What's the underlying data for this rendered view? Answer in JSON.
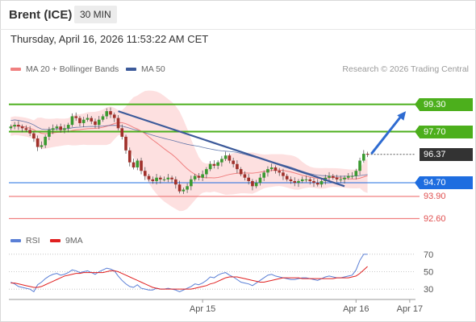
{
  "header": {
    "instrument": "Brent (ICE)",
    "interval": "30 MIN",
    "timestamp": "Thursday, April 16, 2026 11:53:22 AM CET",
    "credit": "Research © 2026 Trading Central"
  },
  "legend": [
    {
      "label": "MA 20 + Bollinger Bands",
      "color": "#f08080"
    },
    {
      "label": "MA 50",
      "color": "#3c5a9a"
    }
  ],
  "rsi_legend": [
    {
      "label": "RSI",
      "color": "#5a7fd6"
    },
    {
      "label": "9MA",
      "color": "#e02020"
    }
  ],
  "chart_data": [
    {
      "type": "candlestick",
      "title": "Brent (ICE)",
      "xlabel": "",
      "ylabel": "",
      "x_ticks": [
        "Apr 15",
        "Apr 16",
        "Apr 17"
      ],
      "ylim": [
        92.2,
        100.7
      ],
      "current_price": 96.37,
      "levels": [
        {
          "value": 99.3,
          "label": "99.30",
          "kind": "resistance",
          "color": "#4caf1c"
        },
        {
          "value": 97.7,
          "label": "97.70",
          "kind": "resistance",
          "color": "#4caf1c"
        },
        {
          "value": 96.37,
          "label": "96.37",
          "kind": "last",
          "color": "#333333"
        },
        {
          "value": 94.7,
          "label": "94.70",
          "kind": "pivot",
          "color": "#1e6de0"
        },
        {
          "value": 93.9,
          "label": "93.90",
          "kind": "support",
          "color": "#f08080"
        },
        {
          "value": 92.6,
          "label": "92.60",
          "kind": "support",
          "color": "#f08080"
        }
      ],
      "close": [
        98.0,
        98.1,
        98.0,
        97.9,
        97.8,
        97.6,
        97.3,
        96.8,
        96.9,
        97.4,
        97.8,
        97.9,
        98.0,
        97.8,
        97.9,
        98.1,
        98.6,
        98.5,
        98.2,
        98.4,
        98.5,
        98.3,
        98.1,
        98.4,
        98.6,
        98.9,
        98.7,
        98.5,
        97.9,
        97.4,
        96.6,
        95.9,
        95.6,
        96.0,
        95.4,
        95.1,
        94.9,
        94.8,
        95.0,
        94.9,
        94.9,
        95.0,
        94.9,
        94.6,
        94.2,
        94.3,
        94.5,
        94.9,
        95.1,
        95.0,
        95.2,
        95.5,
        95.8,
        95.7,
        95.9,
        96.1,
        96.3,
        96.0,
        95.8,
        95.5,
        95.2,
        95.0,
        94.8,
        94.5,
        94.7,
        95.0,
        95.3,
        95.5,
        95.6,
        95.4,
        95.3,
        95.1,
        94.9,
        94.8,
        94.7,
        94.8,
        94.9,
        94.9,
        94.8,
        94.7,
        94.6,
        94.8,
        95.0,
        95.1,
        95.0,
        94.9,
        94.9,
        95.0,
        95.1,
        95.1,
        95.4,
        96.0,
        96.4,
        96.37
      ],
      "trend_lines": [
        {
          "from": {
            "bar": 28,
            "price": 98.9
          },
          "to": {
            "bar": 87,
            "price": 94.5
          },
          "color": "#3c5a9a"
        }
      ],
      "forecast_arrow": {
        "from": {
          "bar": 94,
          "price": 96.4
        },
        "to": {
          "bar": 103,
          "price": 98.9
        },
        "color": "#2e6bd1"
      }
    },
    {
      "type": "line",
      "title": "RSI",
      "ylim": [
        20,
        80
      ],
      "y_ticks": [
        30,
        50,
        70
      ],
      "series": [
        {
          "name": "RSI",
          "color": "#5a7fd6",
          "values": [
            38,
            36,
            33,
            32,
            31,
            30,
            27,
            35,
            38,
            42,
            45,
            47,
            48,
            46,
            47,
            49,
            52,
            51,
            49,
            50,
            51,
            49,
            47,
            50,
            52,
            54,
            53,
            51,
            45,
            40,
            36,
            33,
            32,
            35,
            31,
            30,
            29,
            29,
            31,
            30,
            30,
            31,
            30,
            29,
            27,
            29,
            31,
            33,
            36,
            35,
            37,
            40,
            44,
            43,
            46,
            48,
            49,
            46,
            44,
            41,
            38,
            37,
            36,
            34,
            37,
            40,
            43,
            46,
            47,
            45,
            44,
            43,
            42,
            41,
            41,
            42,
            43,
            43,
            42,
            41,
            40,
            42,
            44,
            45,
            44,
            43,
            43,
            44,
            45,
            46,
            52,
            63,
            70,
            70
          ]
        },
        {
          "name": "9MA",
          "color": "#e02020",
          "values": [
            37,
            37,
            36,
            35,
            34,
            33,
            32,
            32,
            33,
            35,
            37,
            39,
            41,
            43,
            45,
            46,
            47,
            48,
            48,
            49,
            49,
            49,
            49,
            49,
            49,
            50,
            51,
            51,
            50,
            48,
            46,
            44,
            42,
            40,
            38,
            36,
            34,
            32,
            31,
            30,
            30,
            30,
            30,
            30,
            30,
            30,
            30,
            30,
            31,
            32,
            33,
            34,
            36,
            37,
            39,
            41,
            43,
            44,
            44,
            44,
            43,
            42,
            41,
            40,
            39,
            38,
            38,
            39,
            40,
            41,
            42,
            43,
            43,
            43,
            43,
            43,
            42,
            42,
            42,
            42,
            42,
            42,
            42,
            42,
            42,
            43,
            43,
            43,
            43,
            44,
            45,
            48,
            52,
            56
          ]
        }
      ]
    }
  ]
}
